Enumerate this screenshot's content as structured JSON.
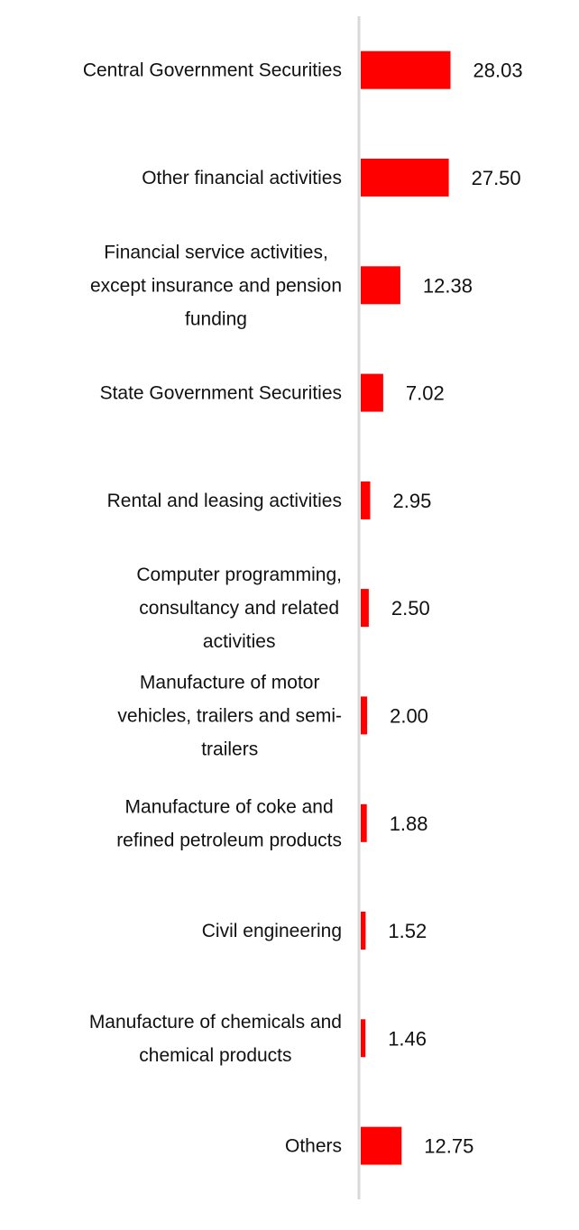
{
  "chart_data": {
    "type": "bar",
    "orientation": "horizontal",
    "categories": [
      "Central Government Securities",
      "Other financial activities",
      "Financial service activities, except insurance and pension funding",
      "State Government Securities",
      "Rental and leasing activities",
      "Computer programming, consultancy and related activities",
      "Manufacture of motor vehicles, trailers and semi-trailers",
      "Manufacture of coke and refined petroleum products",
      "Civil engineering",
      "Manufacture of chemicals and chemical products",
      "Others"
    ],
    "category_lines": [
      [
        "Central Government Securities"
      ],
      [
        "Other financial activities"
      ],
      [
        "Financial service activities,",
        "except insurance and pension",
        "funding"
      ],
      [
        "State Government Securities"
      ],
      [
        "Rental and leasing activities"
      ],
      [
        "Computer programming,",
        "consultancy and related",
        "activities"
      ],
      [
        "Manufacture of motor",
        "vehicles, trailers and semi-",
        "trailers"
      ],
      [
        "Manufacture of coke and",
        "refined petroleum products"
      ],
      [
        "Civil engineering"
      ],
      [
        "Manufacture of chemicals and",
        "chemical products"
      ],
      [
        "Others"
      ]
    ],
    "values": [
      28.03,
      27.5,
      12.38,
      7.02,
      2.95,
      2.5,
      2.0,
      1.88,
      1.52,
      1.46,
      12.75
    ],
    "value_labels": [
      "28.03",
      "27.50",
      "12.38",
      "7.02",
      "2.95",
      "2.50",
      "2.00",
      "1.88",
      "1.52",
      "1.46",
      "12.75"
    ],
    "title": "",
    "xlabel": "",
    "ylabel": "",
    "xlim": [
      0,
      100
    ],
    "grid": false,
    "legend": "none",
    "bar_color": "#ff0000",
    "axis_color": "#d9d9d9"
  }
}
